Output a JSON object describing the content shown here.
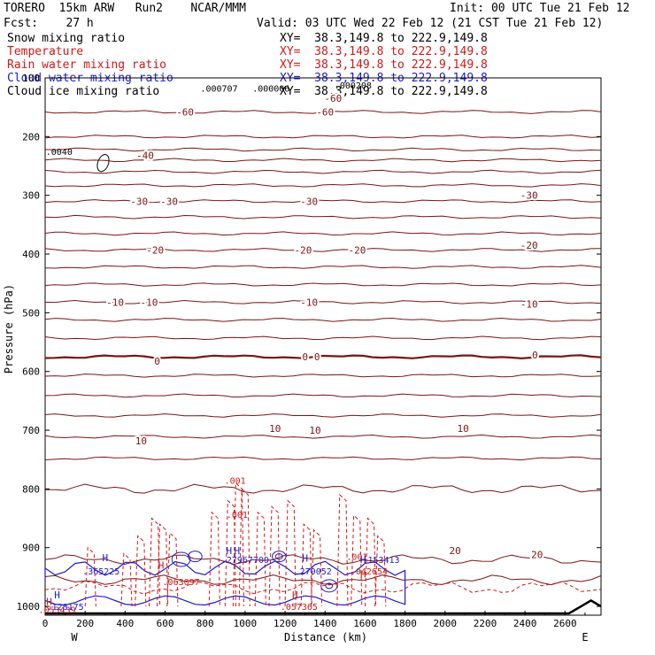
{
  "header": {
    "model": "TORERO  15km ARW   Run2    NCAR/MMM",
    "init": "Init: 00 UTC Tue 21 Feb 12",
    "fcst": "Fcst:    27 h",
    "valid": "Valid: 03 UTC Wed 22 Feb 12 (21 CST Tue 21 Feb 12)"
  },
  "fields": [
    {
      "name": "Snow mixing ratio",
      "xy": "XY=  38.3,149.8 to 222.9,149.8",
      "color": "#000000"
    },
    {
      "name": "Temperature",
      "xy": "XY=  38.3,149.8 to 222.9,149.8",
      "color": "#d01818"
    },
    {
      "name": "Rain water mixing ratio",
      "xy": "XY=  38.3,149.8 to 222.9,149.8",
      "color": "#d01818"
    },
    {
      "name": "Cloud water mixing ratio",
      "xy": "XY=  38.3,149.8 to 222.9,149.8",
      "color": "#1c1cc8"
    },
    {
      "name": "Cloud ice mixing ratio",
      "xy": "XY=  38.3,149.8 to 222.9,149.8",
      "color": "#000000"
    }
  ],
  "chart_data": {
    "type": "cross-section contour",
    "xlabel": "Distance (km)",
    "ylabel": "Pressure (hPa)",
    "xlim": [
      0,
      2780
    ],
    "ylim": [
      100,
      1015
    ],
    "x_ticks": [
      0,
      200,
      400,
      600,
      800,
      1000,
      1200,
      1400,
      1600,
      1800,
      2000,
      2200,
      2400,
      2600
    ],
    "y_ticks": [
      100,
      200,
      300,
      400,
      500,
      600,
      700,
      800,
      900,
      1000
    ],
    "y_tick_labels": [
      "100",
      "200",
      "300",
      "400",
      "500",
      "600",
      "700",
      "800",
      "900",
      "1000"
    ],
    "x_end_labels": {
      "west": "W",
      "east": "E"
    },
    "temperature_contours": [
      {
        "p": 158,
        "label": "-60"
      },
      {
        "p": 200,
        "label": ""
      },
      {
        "p": 222,
        "label": ""
      },
      {
        "p": 240,
        "label": ""
      },
      {
        "p": 260,
        "label": ""
      },
      {
        "p": 283,
        "label": ""
      },
      {
        "p": 310,
        "label": "-30"
      },
      {
        "p": 337,
        "label": ""
      },
      {
        "p": 365,
        "label": ""
      },
      {
        "p": 393,
        "label": "-20"
      },
      {
        "p": 422,
        "label": ""
      },
      {
        "p": 452,
        "label": ""
      },
      {
        "p": 482,
        "label": "-10"
      },
      {
        "p": 512,
        "label": ""
      },
      {
        "p": 543,
        "label": ""
      },
      {
        "p": 575,
        "label": "0"
      },
      {
        "p": 607,
        "label": ""
      },
      {
        "p": 641,
        "label": ""
      },
      {
        "p": 675,
        "label": ""
      },
      {
        "p": 711,
        "label": "10"
      },
      {
        "p": 748,
        "label": ""
      },
      {
        "p": 800,
        "label": ""
      },
      {
        "p": 920,
        "label": "20"
      },
      {
        "p": 955,
        "label": ""
      }
    ],
    "labels": {
      "temp": [
        {
          "x": 1440,
          "p": 135,
          "text": "-60"
        },
        {
          "x": 700,
          "p": 158,
          "text": "-60"
        },
        {
          "x": 1400,
          "p": 158,
          "text": "-60"
        },
        {
          "x": 500,
          "p": 232,
          "text": "-40"
        },
        {
          "x": 470,
          "p": 310,
          "text": "-30"
        },
        {
          "x": 620,
          "p": 310,
          "text": "-30"
        },
        {
          "x": 1320,
          "p": 310,
          "text": "-30"
        },
        {
          "x": 2420,
          "p": 300,
          "text": "-30"
        },
        {
          "x": 550,
          "p": 393,
          "text": "-20"
        },
        {
          "x": 1290,
          "p": 393,
          "text": "-20"
        },
        {
          "x": 1560,
          "p": 393,
          "text": "-20"
        },
        {
          "x": 2420,
          "p": 385,
          "text": "-20"
        },
        {
          "x": 350,
          "p": 482,
          "text": "-10"
        },
        {
          "x": 520,
          "p": 482,
          "text": "-10"
        },
        {
          "x": 1320,
          "p": 482,
          "text": "-10"
        },
        {
          "x": 2420,
          "p": 485,
          "text": "-10"
        },
        {
          "x": 560,
          "p": 582,
          "text": "0"
        },
        {
          "x": 1300,
          "p": 575,
          "text": "0"
        },
        {
          "x": 1360,
          "p": 575,
          "text": "0"
        },
        {
          "x": 2450,
          "p": 572,
          "text": "0"
        },
        {
          "x": 1150,
          "p": 697,
          "text": "10"
        },
        {
          "x": 1350,
          "p": 700,
          "text": "10"
        },
        {
          "x": 480,
          "p": 718,
          "text": "10"
        },
        {
          "x": 2090,
          "p": 697,
          "text": "10"
        },
        {
          "x": 2050,
          "p": 905,
          "text": "20"
        },
        {
          "x": 2460,
          "p": 912,
          "text": "20"
        }
      ],
      "rain": [
        {
          "x": 950,
          "p": 785,
          "text": ".001"
        },
        {
          "x": 960,
          "p": 843,
          "text": ".001"
        },
        {
          "x": 1560,
          "p": 915,
          "text": ".001"
        },
        {
          "x": 1620,
          "p": 940,
          "text": ".042654"
        },
        {
          "x": 680,
          "p": 958,
          "text": ".063097"
        },
        {
          "x": 1270,
          "p": 1000,
          "text": ".057365"
        },
        {
          "x": 60,
          "p": 1005,
          "text": ".053439"
        }
      ],
      "cloud": [
        {
          "x": 280,
          "p": 940,
          "text": ".365225"
        },
        {
          "x": 1000,
          "p": 920,
          "text": ".27967709"
        },
        {
          "x": 1340,
          "p": 940,
          "text": ".270052"
        },
        {
          "x": 1680,
          "p": 920,
          "text": ".153413"
        },
        {
          "x": 100,
          "p": 1000,
          "text": ".128175"
        }
      ],
      "snow": [
        {
          "x": 870,
          "p": 117,
          "text": ".000707"
        },
        {
          "x": 1130,
          "p": 117,
          "text": ".000006"
        },
        {
          "x": 1540,
          "p": 112,
          "text": ".000208"
        },
        {
          "x": 70,
          "p": 225,
          "text": ".0040"
        }
      ],
      "highs": [
        {
          "x": 300,
          "p": 917,
          "text": "H",
          "color": "#1c1cc8"
        },
        {
          "x": 580,
          "p": 930,
          "text": "H",
          "color": "#d01818"
        },
        {
          "x": 920,
          "p": 905,
          "text": "H",
          "color": "#1c1cc8"
        },
        {
          "x": 960,
          "p": 905,
          "text": "H",
          "color": "#1c1cc8"
        },
        {
          "x": 1300,
          "p": 918,
          "text": "H",
          "color": "#1c1cc8"
        },
        {
          "x": 1590,
          "p": 920,
          "text": "H",
          "color": "#1c1cc8"
        },
        {
          "x": 1590,
          "p": 945,
          "text": "H",
          "color": "#d01818"
        },
        {
          "x": 60,
          "p": 980,
          "text": "H",
          "color": "#1c1cc8"
        },
        {
          "x": 20,
          "p": 992,
          "text": "H",
          "color": "#d01818"
        },
        {
          "x": 1250,
          "p": 980,
          "text": "H",
          "color": "#d01818"
        }
      ]
    }
  }
}
